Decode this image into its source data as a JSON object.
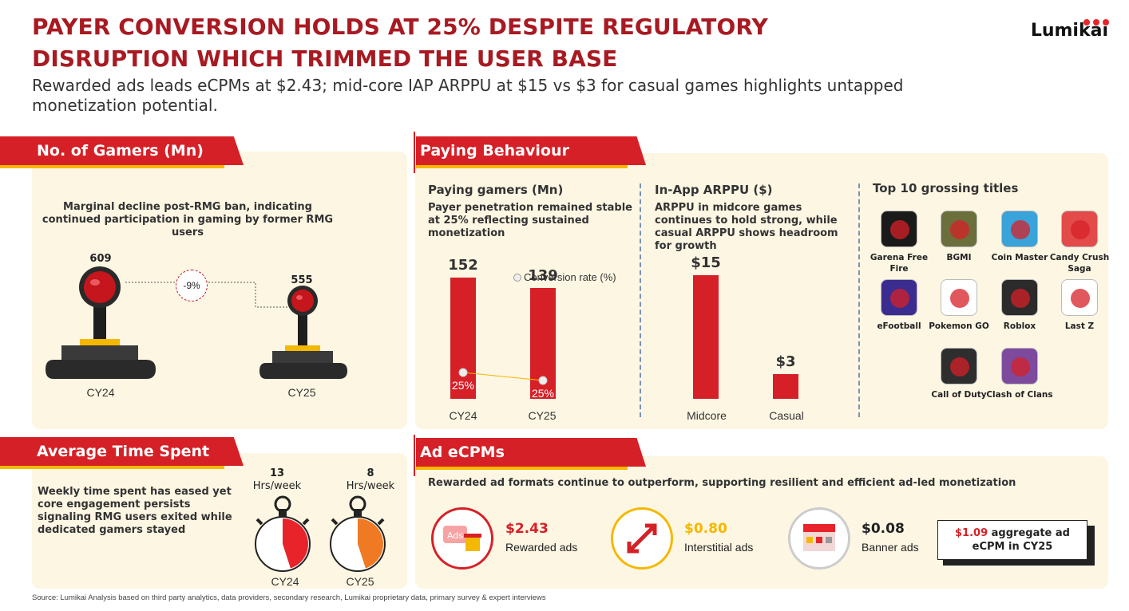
{
  "header": {
    "title_line1": "PAYER CONVERSION HOLDS AT 25% DESPITE REGULATORY",
    "title_line2": "DISRUPTION WHICH TRIMMED THE USER BASE",
    "subtitle": "Rewarded ads leads eCPMs at $2.43; mid-core IAP ARPPU at $15 vs $3 for casual games highlights untapped monetization potential.",
    "logo": "Lumikai"
  },
  "gamers": {
    "heading": "No. of Gamers (Mn)",
    "note": "Marginal decline post-RMG ban, indicating continued participation in gaming by former RMG users",
    "change": "-9%",
    "items": [
      {
        "year": "CY24",
        "value": "609"
      },
      {
        "year": "CY25",
        "value": "555"
      }
    ]
  },
  "paying": {
    "heading": "Paying Behaviour",
    "gamers_title": "Paying gamers (Mn)",
    "gamers_note": "Payer penetration remained stable at 25% reflecting sustained monetization",
    "legend": "Conversion rate (%)",
    "arppu_title": "In-App ARPPU ($)",
    "arppu_note": "ARPPU in midcore games continues to hold strong, while casual ARPPU shows headroom for growth",
    "top_title": "Top 10 grossing titles",
    "titles": [
      {
        "name": "Garena Free Fire",
        "color": "#1a1a1a"
      },
      {
        "name": "BGMI",
        "color": "#6b6f3c"
      },
      {
        "name": "Coin Master",
        "color": "#3aa3d9"
      },
      {
        "name": "Candy Crush Saga",
        "color": "#e34b4b"
      },
      {
        "name": "eFootball",
        "color": "#3a2d8f"
      },
      {
        "name": "Pokemon GO",
        "color": "#ffffff"
      },
      {
        "name": "Roblox",
        "color": "#2b2b2b"
      },
      {
        "name": "Last Z",
        "color": "#ffffff"
      },
      {
        "name": "Call of Duty",
        "color": "#2e2e2e"
      },
      {
        "name": "Clash of Clans",
        "color": "#7d4a9e"
      }
    ]
  },
  "chart_data": [
    {
      "type": "bar",
      "categories": [
        "CY24",
        "CY25"
      ],
      "values": [
        152,
        139
      ],
      "value_labels": [
        "152",
        "139"
      ],
      "conversion_rate": [
        25,
        25
      ],
      "conversion_labels": [
        "25%",
        "25%"
      ],
      "title": "Paying gamers (Mn)",
      "legend": "Conversion rate (%)",
      "ylim": [
        0,
        170
      ]
    },
    {
      "type": "bar",
      "categories": [
        "Midcore",
        "Casual"
      ],
      "values": [
        15,
        3
      ],
      "value_labels": [
        "$15",
        "$3"
      ],
      "title": "In-App ARPPU ($)",
      "ylim": [
        0,
        16.5
      ]
    }
  ],
  "time": {
    "heading": "Average Time Spent",
    "note": "Weekly time spent has eased yet core engagement persists signaling RMG users exited while dedicated gamers stayed",
    "items": [
      {
        "value": "13",
        "unit": "Hrs/week",
        "year": "CY24",
        "fraction": 0.45,
        "color": "#e8232a"
      },
      {
        "value": "8",
        "unit": "Hrs/week",
        "year": "CY25",
        "fraction": 0.45,
        "color": "#f07a24"
      }
    ]
  },
  "ads": {
    "heading": "Ad eCPMs",
    "note": "Rewarded ad formats continue to outperform, supporting resilient and efficient ad-led monetization",
    "items": [
      {
        "value": "$2.43",
        "label": "Rewarded ads",
        "color": "#d62027"
      },
      {
        "value": "$0.80",
        "label": "Interstitial ads",
        "color": "#f5b800"
      },
      {
        "value": "$0.08",
        "label": "Banner ads",
        "color": "#222222"
      }
    ],
    "aggregate_value": "$1.09",
    "aggregate_text": " aggregate ad",
    "aggregate_line2": "eCPM in CY25",
    "icon_badge": "Ads"
  },
  "footer": {
    "source": "Source: Lumikai Analysis based on third party analytics, data providers, secondary research, Lumikai proprietary data, primary survey & expert interviews"
  }
}
